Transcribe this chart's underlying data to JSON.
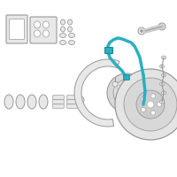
{
  "bg_color": "#ffffff",
  "part_color": "#cccccc",
  "part_edge": "#999999",
  "part_fill": "#e8e8e8",
  "highlight_color": "#2ab0c0",
  "highlight_edge": "#1a8898",
  "figsize": [
    2.0,
    2.0
  ],
  "dpi": 100
}
